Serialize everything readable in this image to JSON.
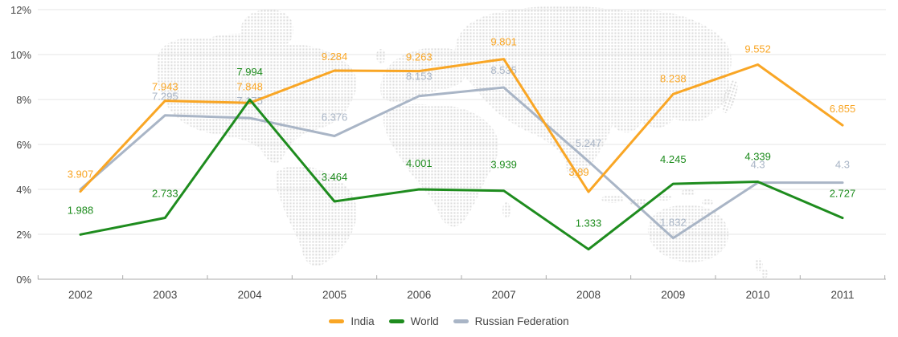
{
  "chart_data": {
    "type": "line",
    "title": "",
    "xlabel": "",
    "ylabel": "",
    "categories": [
      "2002",
      "2003",
      "2004",
      "2005",
      "2006",
      "2007",
      "2008",
      "2009",
      "2010",
      "2011"
    ],
    "y_axis": {
      "min": 0,
      "max": 12,
      "step": 2,
      "unit": "%",
      "tick_labels": [
        "0%",
        "2%",
        "4%",
        "6%",
        "8%",
        "10%",
        "12%"
      ]
    },
    "grid": true,
    "legend_position": "bottom",
    "background": "dotted-world-map",
    "colors": {
      "grid": "#e5e5e5",
      "axis": "#ababab",
      "axis_text": "#444444",
      "map_dots": "#dcdcdc"
    },
    "series": [
      {
        "name": "India",
        "color": "#F9A625",
        "values": [
          3.907,
          7.943,
          7.848,
          9.284,
          9.263,
          9.801,
          3.891,
          8.238,
          9.552,
          6.855
        ],
        "labels": [
          "3.907",
          "7.943",
          "7.848",
          "9.284",
          "9.263",
          "9.801",
          "3.89",
          "8.238",
          "9.552",
          "6.855"
        ],
        "label_dx": [
          0,
          0,
          0,
          0,
          0,
          0,
          -12,
          0,
          0,
          0
        ],
        "label_dy": [
          -17,
          -13,
          -16,
          -13,
          -13,
          -17,
          -20,
          -15,
          -15,
          -16
        ]
      },
      {
        "name": "World",
        "color": "#1E8C1E",
        "values": [
          1.988,
          2.733,
          7.994,
          3.464,
          4.001,
          3.939,
          1.333,
          4.245,
          4.339,
          2.727
        ],
        "labels": [
          "1.988",
          "2.733",
          "7.994",
          "3.464",
          "4.001",
          "3.939",
          "1.333",
          "4.245",
          "4.339",
          "2.727"
        ],
        "label_dx": [
          0,
          0,
          0,
          0,
          0,
          0,
          0,
          0,
          0,
          0
        ],
        "label_dy": [
          -26,
          -26,
          -30,
          -26,
          -28,
          -28,
          -28,
          -26,
          -27,
          -26
        ]
      },
      {
        "name": "Russian Federation",
        "color": "#A9B5C6",
        "values": [
          4.0,
          7.295,
          7.175,
          6.376,
          8.153,
          8.535,
          5.247,
          1.832,
          4.3,
          4.3
        ],
        "labels": [
          "",
          "7.295",
          "7.175",
          "6.376",
          "8.153",
          "8.535",
          "5.247",
          "1.832",
          "4.3",
          "4.3"
        ],
        "label_dx": [
          0,
          0,
          0,
          0,
          0,
          0,
          0,
          0,
          0,
          0
        ],
        "label_dy": [
          0,
          -19,
          -17,
          -19,
          -20,
          -17,
          -18,
          -15,
          -18,
          -18
        ]
      }
    ],
    "z_order": [
      2,
      0,
      1
    ]
  }
}
